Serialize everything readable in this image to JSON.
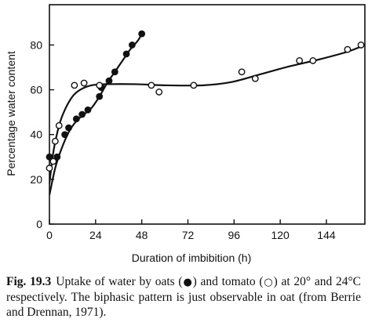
{
  "chart_data": {
    "type": "scatter",
    "xlabel": "Duration  of  imbibition (h)",
    "ylabel": "Percentage water content",
    "xlim": [
      0,
      164
    ],
    "ylim": [
      0,
      98
    ],
    "xticks": [
      0,
      24,
      48,
      72,
      96,
      120,
      144
    ],
    "yticks": [
      0,
      20,
      40,
      60,
      80
    ],
    "grid": false,
    "series": [
      {
        "marker": "filled-circle",
        "points": [
          [
            0,
            30
          ],
          [
            4,
            30
          ],
          [
            8,
            40
          ],
          [
            10,
            43
          ],
          [
            14,
            47
          ],
          [
            17,
            49
          ],
          [
            20,
            51
          ],
          [
            26,
            57
          ],
          [
            27,
            61
          ],
          [
            31,
            64
          ],
          [
            34,
            68
          ],
          [
            40,
            76
          ],
          [
            43,
            80
          ],
          [
            48,
            85
          ]
        ],
        "curve": [
          [
            0,
            13
          ],
          [
            3,
            25
          ],
          [
            6,
            33
          ],
          [
            10,
            41
          ],
          [
            14,
            46
          ],
          [
            18,
            49
          ],
          [
            22,
            52
          ],
          [
            26,
            57
          ],
          [
            30,
            63
          ],
          [
            34,
            68
          ],
          [
            38,
            73
          ],
          [
            42,
            78
          ],
          [
            46,
            82
          ],
          [
            48,
            85
          ]
        ]
      },
      {
        "marker": "open-circle",
        "points": [
          [
            0,
            25
          ],
          [
            2,
            28
          ],
          [
            3,
            37
          ],
          [
            5,
            44
          ],
          [
            13,
            62
          ],
          [
            18,
            63
          ],
          [
            26,
            62
          ],
          [
            53,
            62
          ],
          [
            57,
            59
          ],
          [
            75,
            62
          ],
          [
            100,
            68
          ],
          [
            107,
            65
          ],
          [
            130,
            73
          ],
          [
            137,
            73
          ],
          [
            155,
            78
          ],
          [
            162,
            80
          ]
        ],
        "curve": [
          [
            0,
            18
          ],
          [
            2,
            32
          ],
          [
            5,
            44
          ],
          [
            8,
            51
          ],
          [
            12,
            57
          ],
          [
            16,
            60
          ],
          [
            22,
            62
          ],
          [
            30,
            62.5
          ],
          [
            45,
            62.5
          ],
          [
            60,
            62
          ],
          [
            80,
            62
          ],
          [
            95,
            63.5
          ],
          [
            110,
            67
          ],
          [
            125,
            70.5
          ],
          [
            140,
            73.5
          ],
          [
            155,
            77
          ],
          [
            164,
            80
          ]
        ]
      }
    ]
  },
  "caption": {
    "fig_label": "Fig. 19.3",
    "text_before_filled": "Uptake of water by oats (",
    "filled_symbol": "●",
    "text_between": ") and tomato (",
    "open_symbol": "○",
    "text_after": ") at 20° and 24°C respectively. The biphasic pattern is just observable in oat (from Berrie and Drennan, 1971)."
  }
}
